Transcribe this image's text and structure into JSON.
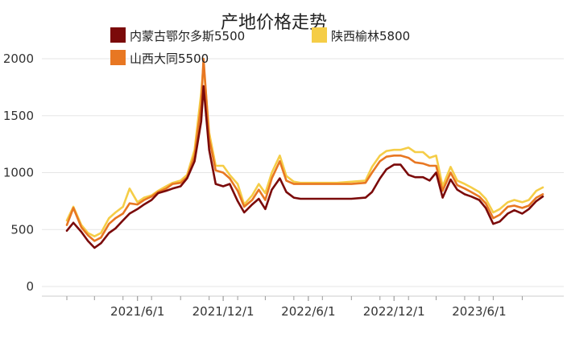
{
  "chart_data": {
    "type": "line",
    "title": "产地价格走势",
    "xlabel": "",
    "ylabel": "",
    "ylim": [
      0,
      2000
    ],
    "yticks": [
      0,
      500,
      1000,
      1500,
      2000
    ],
    "xticks": [
      "2021/6/1",
      "2021/12/1",
      "2022/6/1",
      "2022/12/1",
      "2023/6/1"
    ],
    "grid": true,
    "legend_position": "top",
    "x": [
      "2021-01-01",
      "2021-01-15",
      "2021-02-01",
      "2021-02-15",
      "2021-03-01",
      "2021-03-15",
      "2021-04-01",
      "2021-04-15",
      "2021-05-01",
      "2021-05-15",
      "2021-06-01",
      "2021-06-15",
      "2021-07-01",
      "2021-07-15",
      "2021-08-01",
      "2021-08-15",
      "2021-09-01",
      "2021-09-15",
      "2021-10-01",
      "2021-10-15",
      "2021-10-20",
      "2021-11-01",
      "2021-11-15",
      "2021-12-01",
      "2021-12-15",
      "2022-01-01",
      "2022-01-15",
      "2022-02-01",
      "2022-02-15",
      "2022-03-01",
      "2022-03-15",
      "2022-04-01",
      "2022-04-15",
      "2022-05-01",
      "2022-05-15",
      "2022-06-01",
      "2022-07-01",
      "2022-08-01",
      "2022-09-01",
      "2022-10-01",
      "2022-10-15",
      "2022-11-01",
      "2022-11-15",
      "2022-12-01",
      "2022-12-15",
      "2023-01-01",
      "2023-01-15",
      "2023-02-01",
      "2023-02-15",
      "2023-03-01",
      "2023-03-15",
      "2023-04-01",
      "2023-04-15",
      "2023-05-01",
      "2023-05-15",
      "2023-06-01",
      "2023-06-15",
      "2023-07-01",
      "2023-07-15",
      "2023-08-01",
      "2023-08-15",
      "2023-09-01",
      "2023-09-15",
      "2023-10-01",
      "2023-10-15"
    ],
    "series": [
      {
        "name": "内蒙古鄂尔多斯5500",
        "color": "#7b0a0a",
        "values": [
          490,
          560,
          480,
          400,
          340,
          380,
          470,
          510,
          580,
          640,
          680,
          720,
          760,
          820,
          840,
          860,
          880,
          950,
          1100,
          1450,
          1760,
          1200,
          900,
          880,
          900,
          750,
          650,
          720,
          770,
          680,
          850,
          950,
          830,
          780,
          770,
          770,
          770,
          770,
          770,
          780,
          830,
          950,
          1030,
          1070,
          1070,
          980,
          960,
          960,
          930,
          1000,
          780,
          940,
          850,
          810,
          790,
          760,
          690,
          550,
          570,
          640,
          670,
          640,
          680,
          750,
          790
        ]
      },
      {
        "name": "陕西榆林5800",
        "color": "#f5cd47",
        "values": [
          580,
          700,
          540,
          470,
          440,
          470,
          600,
          650,
          700,
          860,
          740,
          780,
          800,
          840,
          880,
          910,
          930,
          980,
          1200,
          1700,
          1950,
          1350,
          1060,
          1060,
          980,
          900,
          720,
          800,
          900,
          820,
          1000,
          1150,
          970,
          920,
          910,
          910,
          910,
          910,
          920,
          930,
          1050,
          1150,
          1190,
          1200,
          1200,
          1220,
          1180,
          1180,
          1130,
          1150,
          880,
          1050,
          930,
          900,
          870,
          830,
          770,
          650,
          680,
          740,
          760,
          740,
          760,
          840,
          870
        ]
      },
      {
        "name": "山西大同5500",
        "color": "#e87722",
        "values": [
          540,
          690,
          520,
          450,
          400,
          430,
          550,
          600,
          640,
          730,
          720,
          760,
          790,
          830,
          860,
          900,
          910,
          960,
          1150,
          1600,
          2000,
          1300,
          1020,
          1000,
          950,
          840,
          700,
          760,
          850,
          760,
          950,
          1100,
          930,
          900,
          900,
          900,
          900,
          900,
          900,
          910,
          1000,
          1100,
          1140,
          1150,
          1150,
          1130,
          1090,
          1080,
          1060,
          1060,
          840,
          1000,
          890,
          860,
          830,
          790,
          730,
          600,
          630,
          700,
          710,
          690,
          710,
          780,
          810
        ]
      }
    ]
  }
}
